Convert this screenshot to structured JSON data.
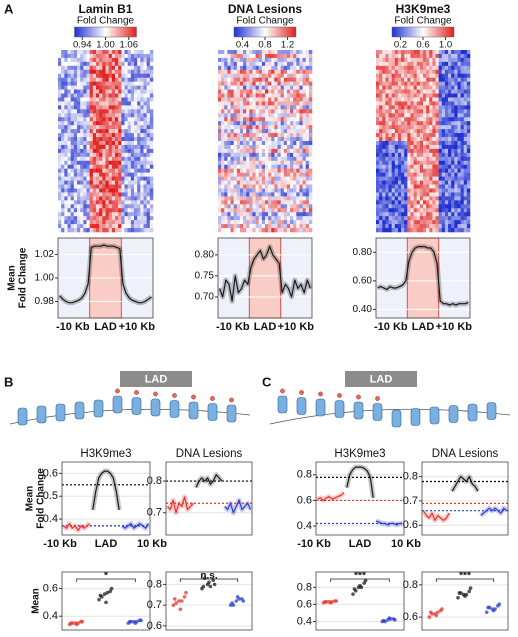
{
  "panel_labels": [
    "A",
    "B",
    "C"
  ],
  "heatmaps": [
    {
      "title": "Lamin B1",
      "colorbar_label": "Fold Change",
      "clim": [
        0.92,
        1.08
      ],
      "colorbar_ticks": [
        0.94,
        {
          "value": 1,
          "label": "1.00"
        },
        1.06
      ]
    },
    {
      "title": "DNA Lesions",
      "colorbar_label": "Fold Change",
      "clim": [
        0.25,
        1.35
      ],
      "colorbar_ticks": [
        0.4,
        0.8,
        1.2
      ]
    },
    {
      "title": "H3K9me3",
      "colorbar_label": "Fold Change",
      "clim": [
        0.05,
        1.15
      ],
      "colorbar_ticks": [
        0.2,
        0.6,
        {
          "value": 1,
          "label": "1.0"
        }
      ]
    }
  ],
  "diagrams": [
    {
      "label": "LAD"
    },
    {
      "label": "LAD"
    }
  ],
  "chart_data": [
    {
      "type": "line",
      "y_label": [
        "Mean",
        "Fold Change"
      ],
      "xlabels": [
        "-10 Kb",
        "LAD",
        "+10 Kb"
      ],
      "grid": true,
      "highlight_color": "#f9cdc6",
      "ylim": [
        0.966,
        1.034
      ],
      "yticks": [
        0.98,
        {
          "value": 1,
          "label": "1.00"
        },
        1.02
      ],
      "series": [
        {
          "color": "#1a1a1a",
          "values": [
            0.985,
            0.982,
            0.98,
            0.979,
            0.979,
            0.98,
            0.981,
            0.983,
            0.987,
            0.995,
            1.026,
            1.027,
            1.027,
            1.027,
            1.028,
            1.027,
            1.027,
            1.027,
            1.026,
            1.025,
            0.995,
            0.987,
            0.983,
            0.981,
            0.98,
            0.979,
            0.979,
            0.98,
            0.982,
            0.984
          ]
        }
      ]
    },
    {
      "type": "line",
      "xlabels": [
        "-10 Kb",
        "LAD",
        "+10 Kb"
      ],
      "grid": true,
      "highlight_color": "#f9cdc6",
      "ylim": [
        0.65,
        0.84
      ],
      "yticks": [
        {
          "value": 0.7,
          "label": "0.70"
        },
        0.75,
        {
          "value": 0.8,
          "label": "0.80"
        }
      ],
      "series": [
        {
          "color": "#1a1a1a",
          "values": [
            0.72,
            0.7,
            0.74,
            0.73,
            0.69,
            0.75,
            0.71,
            0.72,
            0.74,
            0.73,
            0.77,
            0.79,
            0.8,
            0.81,
            0.79,
            0.8,
            0.82,
            0.8,
            0.79,
            0.78,
            0.71,
            0.73,
            0.72,
            0.7,
            0.74,
            0.72,
            0.73,
            0.71,
            0.74,
            0.72
          ]
        }
      ]
    },
    {
      "type": "line",
      "xlabels": [
        "-10 Kb",
        "LAD",
        "+10 Kb"
      ],
      "grid": true,
      "highlight_color": "#f9cdc6",
      "ylim": [
        0.34,
        0.9
      ],
      "yticks": [
        {
          "value": 0.4,
          "label": "0.40"
        },
        {
          "value": 0.6,
          "label": "0.60"
        },
        {
          "value": 0.8,
          "label": "0.80"
        }
      ],
      "series": [
        {
          "color": "#1a1a1a",
          "values": [
            0.55,
            0.56,
            0.55,
            0.54,
            0.56,
            0.55,
            0.55,
            0.56,
            0.57,
            0.6,
            0.74,
            0.8,
            0.83,
            0.84,
            0.84,
            0.84,
            0.83,
            0.83,
            0.8,
            0.72,
            0.46,
            0.44,
            0.44,
            0.43,
            0.44,
            0.43,
            0.44,
            0.44,
            0.44,
            0.45
          ]
        }
      ]
    },
    {
      "type": "line",
      "title": "H3K9me3",
      "y_label": [
        "Mean",
        "Fold Change"
      ],
      "xlabels": [
        "-10 Kb",
        "LAD",
        "10 Kb"
      ],
      "grid": true,
      "ylim": [
        0.33,
        0.65
      ],
      "yticks": [
        0.4,
        0.5,
        0.6
      ],
      "ref_lines": [
        {
          "value": 0.55,
          "color": "#000000"
        },
        {
          "value": 0.37,
          "color": "#e8322b"
        },
        {
          "value": 0.37,
          "color": "#2b3cc9"
        }
      ],
      "series": [
        {
          "color": "#e8322b",
          "values": [
            0.37,
            0.36,
            0.38,
            0.36,
            0.37,
            0.35,
            0.37,
            0.36,
            0.37,
            0.38,
            null,
            null,
            null,
            null,
            null,
            null,
            null,
            null,
            null,
            null,
            null,
            null,
            null,
            null,
            null,
            null,
            null,
            null,
            null,
            null
          ]
        },
        {
          "color": "#1a1a1a",
          "values": [
            null,
            null,
            null,
            null,
            null,
            null,
            null,
            null,
            null,
            null,
            0.44,
            0.52,
            0.58,
            0.6,
            0.61,
            0.61,
            0.6,
            0.58,
            0.52,
            0.44,
            null,
            null,
            null,
            null,
            null,
            null,
            null,
            null,
            null,
            null
          ]
        },
        {
          "color": "#2b3cc9",
          "values": [
            null,
            null,
            null,
            null,
            null,
            null,
            null,
            null,
            null,
            null,
            null,
            null,
            null,
            null,
            null,
            null,
            null,
            null,
            null,
            null,
            0.37,
            0.36,
            0.37,
            0.38,
            0.36,
            0.37,
            0.38,
            0.37,
            0.36,
            0.38
          ]
        }
      ]
    },
    {
      "type": "line",
      "title": "DNA Lesions",
      "grid": true,
      "ylim": [
        0.63,
        0.86
      ],
      "yticks": [
        0.7,
        0.8
      ],
      "ref_lines": [
        {
          "value": 0.8,
          "color": "#000000"
        },
        {
          "value": 0.73,
          "color": "#e8322b"
        }
      ],
      "series": [
        {
          "color": "#e8322b",
          "values": [
            0.72,
            0.71,
            0.74,
            0.7,
            0.73,
            0.72,
            0.75,
            0.71,
            0.72,
            0.73,
            null,
            null,
            null,
            null,
            null,
            null,
            null,
            null,
            null,
            null,
            null,
            null,
            null,
            null,
            null,
            null,
            null,
            null,
            null,
            null
          ]
        },
        {
          "color": "#1a1a1a",
          "values": [
            null,
            null,
            null,
            null,
            null,
            null,
            null,
            null,
            null,
            null,
            0.78,
            0.8,
            0.81,
            0.8,
            0.81,
            0.79,
            0.8,
            0.82,
            0.81,
            0.8,
            null,
            null,
            null,
            null,
            null,
            null,
            null,
            null,
            null,
            null
          ]
        },
        {
          "color": "#2b3cc9",
          "values": [
            null,
            null,
            null,
            null,
            null,
            null,
            null,
            null,
            null,
            null,
            null,
            null,
            null,
            null,
            null,
            null,
            null,
            null,
            null,
            null,
            0.72,
            0.71,
            0.73,
            0.7,
            0.72,
            0.74,
            0.71,
            0.72,
            0.73,
            0.71
          ]
        }
      ]
    },
    {
      "type": "line",
      "title": "H3K9me3",
      "xlabels": [
        "-10 Kb",
        "LAD",
        "10 Kb"
      ],
      "grid": true,
      "ylim": [
        0.33,
        0.9
      ],
      "yticks": [
        0.4,
        0.6,
        0.8
      ],
      "ref_lines": [
        {
          "value": 0.78,
          "color": "#000000"
        },
        {
          "value": 0.6,
          "color": "#e8322b"
        },
        {
          "value": 0.42,
          "color": "#2b3cc9"
        }
      ],
      "series": [
        {
          "color": "#e8322b",
          "values": [
            0.61,
            0.62,
            0.6,
            0.62,
            0.63,
            0.61,
            0.62,
            0.63,
            0.64,
            0.66,
            null,
            null,
            null,
            null,
            null,
            null,
            null,
            null,
            null,
            null,
            null,
            null,
            null,
            null,
            null,
            null,
            null,
            null,
            null,
            null
          ]
        },
        {
          "color": "#1a1a1a",
          "values": [
            null,
            null,
            null,
            null,
            null,
            null,
            null,
            null,
            null,
            null,
            0.7,
            0.8,
            0.84,
            0.86,
            0.86,
            0.86,
            0.85,
            0.83,
            0.78,
            0.62,
            null,
            null,
            null,
            null,
            null,
            null,
            null,
            null,
            null,
            null
          ]
        },
        {
          "color": "#2b3cc9",
          "values": [
            null,
            null,
            null,
            null,
            null,
            null,
            null,
            null,
            null,
            null,
            null,
            null,
            null,
            null,
            null,
            null,
            null,
            null,
            null,
            null,
            0.44,
            0.43,
            0.42,
            0.42,
            0.41,
            0.42,
            0.42,
            0.41,
            0.42,
            0.42
          ]
        }
      ]
    },
    {
      "type": "line",
      "title": "DNA Lesions",
      "grid": true,
      "ylim": [
        0.56,
        0.86
      ],
      "yticks": [
        0.6,
        0.7,
        0.8
      ],
      "ref_lines": [
        {
          "value": 0.78,
          "color": "#000000"
        },
        {
          "value": 0.69,
          "color": "#e8322b"
        },
        {
          "value": 0.66,
          "color": "#2b3cc9"
        }
      ],
      "series": [
        {
          "color": "#e8322b",
          "values": [
            0.66,
            0.64,
            0.63,
            0.65,
            0.62,
            0.64,
            0.63,
            0.62,
            0.63,
            0.65,
            null,
            null,
            null,
            null,
            null,
            null,
            null,
            null,
            null,
            null,
            null,
            null,
            null,
            null,
            null,
            null,
            null,
            null,
            null,
            null
          ]
        },
        {
          "color": "#1a1a1a",
          "values": [
            null,
            null,
            null,
            null,
            null,
            null,
            null,
            null,
            null,
            null,
            0.74,
            0.76,
            0.78,
            0.8,
            0.79,
            0.78,
            0.8,
            0.77,
            0.76,
            0.74,
            null,
            null,
            null,
            null,
            null,
            null,
            null,
            null,
            null,
            null
          ]
        },
        {
          "color": "#2b3cc9",
          "values": [
            null,
            null,
            null,
            null,
            null,
            null,
            null,
            null,
            null,
            null,
            null,
            null,
            null,
            null,
            null,
            null,
            null,
            null,
            null,
            null,
            0.64,
            0.65,
            0.66,
            0.67,
            0.66,
            0.67,
            0.66,
            0.65,
            0.67,
            0.66
          ]
        }
      ]
    },
    {
      "type": "strip",
      "y_label": [
        "Mean"
      ],
      "annotation": "*",
      "grid": true,
      "ylim": [
        0.3,
        0.72
      ],
      "yticks": [
        0.4,
        0.6
      ],
      "series": [
        {
          "color": "#e8322b",
          "values": [
            0.34,
            0.35,
            0.36,
            0.35,
            0.34,
            0.36,
            0.35,
            0.35
          ]
        },
        {
          "color": "#1a1a1a",
          "values": [
            0.52,
            0.56,
            0.58,
            0.55,
            0.5,
            0.6,
            0.54,
            0.57
          ]
        },
        {
          "color": "#2b3cc9",
          "values": [
            0.35,
            0.36,
            0.37,
            0.36,
            0.35,
            0.37,
            0.36,
            0.36
          ]
        }
      ]
    },
    {
      "type": "strip",
      "annotation": "n.s.",
      "grid": true,
      "ylim": [
        0.58,
        0.86
      ],
      "yticks": [
        0.6,
        0.7,
        0.8
      ],
      "series": [
        {
          "color": "#e8322b",
          "values": [
            0.7,
            0.72,
            0.74,
            0.73,
            0.68,
            0.76,
            0.71,
            0.72
          ]
        },
        {
          "color": "#1a1a1a",
          "values": [
            0.78,
            0.8,
            0.82,
            0.79,
            0.81,
            0.8,
            0.83,
            0.79
          ]
        },
        {
          "color": "#2b3cc9",
          "values": [
            0.7,
            0.72,
            0.73,
            0.71,
            0.74,
            0.72,
            0.7,
            0.73
          ]
        }
      ]
    },
    {
      "type": "strip",
      "annotation": "***",
      "grid": true,
      "ylim": [
        0.3,
        0.98
      ],
      "yticks": [
        0.4,
        0.6,
        0.8
      ],
      "series": [
        {
          "color": "#e8322b",
          "values": [
            0.62,
            0.63,
            0.64,
            0.63,
            0.62,
            0.64,
            0.63,
            0.63
          ]
        },
        {
          "color": "#1a1a1a",
          "values": [
            0.72,
            0.8,
            0.85,
            0.78,
            0.82,
            0.88,
            0.76,
            0.8
          ]
        },
        {
          "color": "#2b3cc9",
          "values": [
            0.4,
            0.42,
            0.43,
            0.41,
            0.44,
            0.42,
            0.4,
            0.43
          ]
        }
      ]
    },
    {
      "type": "strip",
      "annotation": "***",
      "grid": true,
      "ylim": [
        0.52,
        0.88
      ],
      "yticks": [
        0.6,
        0.8
      ],
      "series": [
        {
          "color": "#e8322b",
          "values": [
            0.6,
            0.62,
            0.64,
            0.63,
            0.61,
            0.65,
            0.62,
            0.63
          ]
        },
        {
          "color": "#1a1a1a",
          "values": [
            0.72,
            0.74,
            0.76,
            0.75,
            0.73,
            0.78,
            0.75,
            0.74
          ]
        },
        {
          "color": "#2b3cc9",
          "values": [
            0.63,
            0.65,
            0.67,
            0.66,
            0.64,
            0.68,
            0.66,
            0.65
          ]
        }
      ]
    }
  ]
}
